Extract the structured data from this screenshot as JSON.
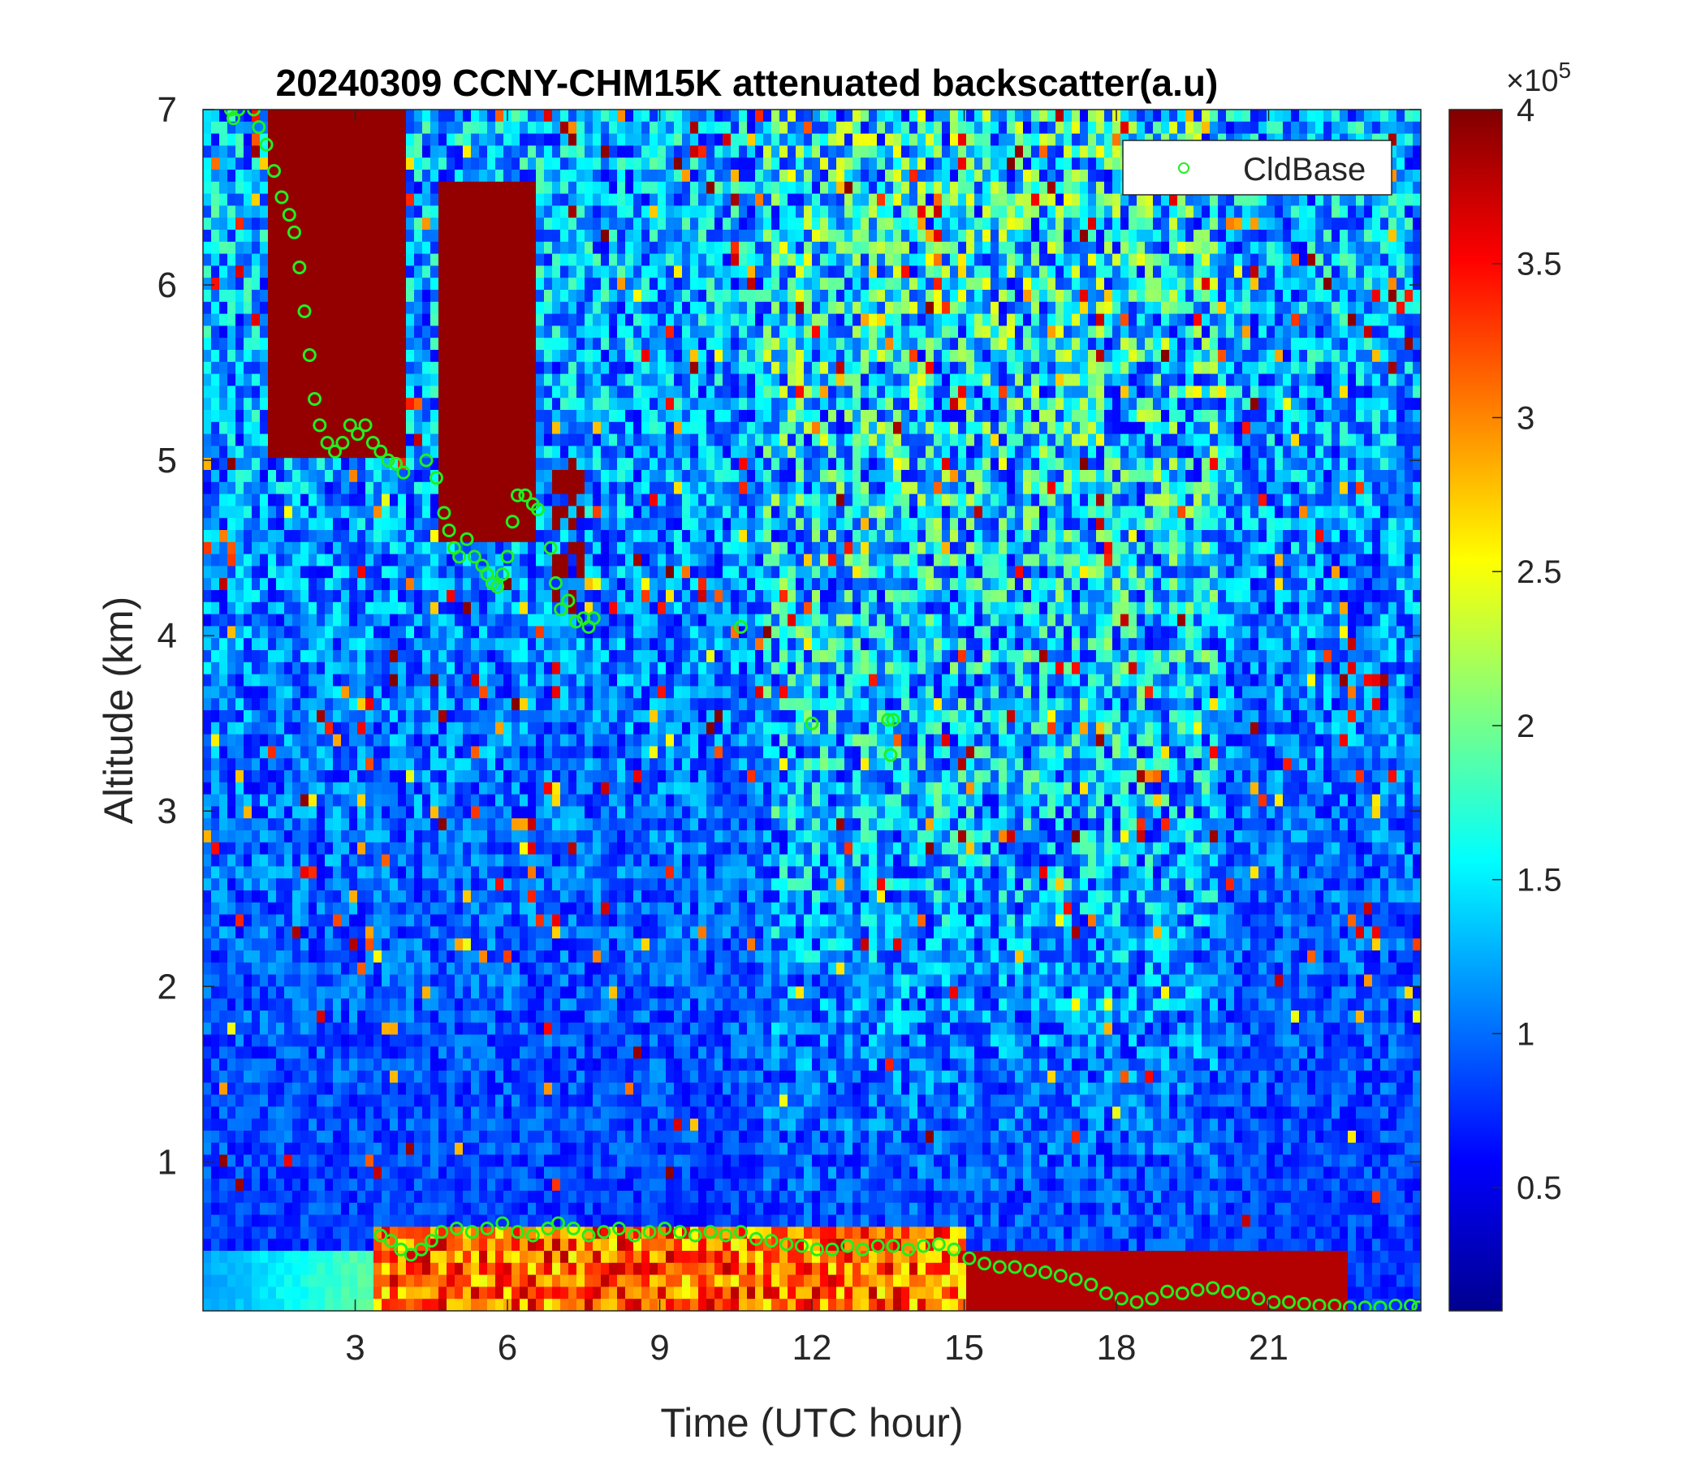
{
  "chart_data": {
    "type": "heatmap",
    "title": "20240309 CCNY-CHM15K attenuated backscatter(a.u)",
    "xlabel": "Time (UTC hour)",
    "ylabel": "Altitude (km)",
    "xlim": [
      0,
      24
    ],
    "ylim": [
      0.15,
      7
    ],
    "xticks": [
      3,
      6,
      9,
      12,
      15,
      18,
      21
    ],
    "yticks": [
      1,
      2,
      3,
      4,
      5,
      6,
      7
    ],
    "colormap": "jet",
    "colorbar": {
      "exponent_label": "×10",
      "exponent": "5",
      "range": [
        0.1,
        4
      ],
      "ticks": [
        0.5,
        1,
        1.5,
        2,
        2.5,
        3,
        3.5,
        4
      ]
    },
    "legend": {
      "position": "top-right",
      "entries": [
        "CldBase"
      ]
    },
    "series": [
      {
        "name": "CldBase",
        "marker": "circle",
        "color": "#22ee22",
        "points": [
          [
            0.55,
            7.0
          ],
          [
            0.6,
            6.95
          ],
          [
            0.7,
            7.0
          ],
          [
            1.0,
            7.0
          ],
          [
            1.1,
            6.9
          ],
          [
            1.25,
            6.8
          ],
          [
            1.4,
            6.65
          ],
          [
            1.55,
            6.5
          ],
          [
            1.7,
            6.4
          ],
          [
            1.8,
            6.3
          ],
          [
            1.9,
            6.1
          ],
          [
            2.0,
            5.85
          ],
          [
            2.1,
            5.6
          ],
          [
            2.2,
            5.35
          ],
          [
            2.3,
            5.2
          ],
          [
            2.45,
            5.1
          ],
          [
            2.6,
            5.05
          ],
          [
            2.75,
            5.1
          ],
          [
            2.9,
            5.2
          ],
          [
            3.05,
            5.15
          ],
          [
            3.2,
            5.2
          ],
          [
            3.35,
            5.1
          ],
          [
            3.5,
            5.05
          ],
          [
            3.65,
            5.0
          ],
          [
            3.8,
            4.98
          ],
          [
            3.95,
            4.93
          ],
          [
            4.4,
            5.0
          ],
          [
            4.6,
            4.9
          ],
          [
            4.75,
            4.7
          ],
          [
            4.85,
            4.6
          ],
          [
            4.95,
            4.5
          ],
          [
            5.05,
            4.45
          ],
          [
            5.2,
            4.55
          ],
          [
            5.35,
            4.45
          ],
          [
            5.5,
            4.4
          ],
          [
            5.6,
            4.35
          ],
          [
            5.7,
            4.3
          ],
          [
            5.8,
            4.28
          ],
          [
            5.9,
            4.35
          ],
          [
            6.0,
            4.45
          ],
          [
            6.1,
            4.65
          ],
          [
            6.2,
            4.8
          ],
          [
            6.35,
            4.8
          ],
          [
            6.5,
            4.75
          ],
          [
            6.6,
            4.72
          ],
          [
            6.85,
            4.5
          ],
          [
            6.95,
            4.3
          ],
          [
            7.05,
            4.15
          ],
          [
            7.2,
            4.2
          ],
          [
            7.35,
            4.08
          ],
          [
            7.5,
            4.1
          ],
          [
            7.6,
            4.05
          ],
          [
            7.7,
            4.1
          ],
          [
            10.6,
            4.05
          ],
          [
            12.0,
            3.5
          ],
          [
            13.5,
            3.52
          ],
          [
            13.6,
            3.52
          ],
          [
            13.55,
            3.32
          ],
          [
            3.5,
            0.58
          ],
          [
            3.7,
            0.55
          ],
          [
            3.9,
            0.5
          ],
          [
            4.1,
            0.47
          ],
          [
            4.3,
            0.5
          ],
          [
            4.5,
            0.55
          ],
          [
            4.7,
            0.6
          ],
          [
            5.0,
            0.62
          ],
          [
            5.3,
            0.6
          ],
          [
            5.6,
            0.62
          ],
          [
            5.9,
            0.65
          ],
          [
            6.2,
            0.6
          ],
          [
            6.5,
            0.58
          ],
          [
            6.8,
            0.62
          ],
          [
            7.0,
            0.65
          ],
          [
            7.3,
            0.62
          ],
          [
            7.6,
            0.58
          ],
          [
            7.9,
            0.6
          ],
          [
            8.2,
            0.62
          ],
          [
            8.5,
            0.58
          ],
          [
            8.8,
            0.6
          ],
          [
            9.1,
            0.62
          ],
          [
            9.4,
            0.6
          ],
          [
            9.7,
            0.58
          ],
          [
            10.0,
            0.6
          ],
          [
            10.3,
            0.58
          ],
          [
            10.6,
            0.6
          ],
          [
            10.9,
            0.56
          ],
          [
            11.2,
            0.55
          ],
          [
            11.5,
            0.53
          ],
          [
            11.8,
            0.52
          ],
          [
            12.1,
            0.5
          ],
          [
            12.4,
            0.5
          ],
          [
            12.7,
            0.52
          ],
          [
            13.0,
            0.5
          ],
          [
            13.3,
            0.52
          ],
          [
            13.6,
            0.52
          ],
          [
            13.9,
            0.5
          ],
          [
            14.2,
            0.52
          ],
          [
            14.5,
            0.53
          ],
          [
            14.8,
            0.5
          ],
          [
            15.1,
            0.45
          ],
          [
            15.4,
            0.42
          ],
          [
            15.7,
            0.4
          ],
          [
            16.0,
            0.4
          ],
          [
            16.3,
            0.38
          ],
          [
            16.6,
            0.37
          ],
          [
            16.9,
            0.35
          ],
          [
            17.2,
            0.33
          ],
          [
            17.5,
            0.3
          ],
          [
            17.8,
            0.25
          ],
          [
            18.1,
            0.22
          ],
          [
            18.4,
            0.2
          ],
          [
            18.7,
            0.22
          ],
          [
            19.0,
            0.26
          ],
          [
            19.3,
            0.25
          ],
          [
            19.6,
            0.27
          ],
          [
            19.9,
            0.28
          ],
          [
            20.2,
            0.26
          ],
          [
            20.5,
            0.25
          ],
          [
            20.8,
            0.22
          ],
          [
            21.1,
            0.2
          ],
          [
            21.4,
            0.2
          ],
          [
            21.7,
            0.19
          ],
          [
            22.0,
            0.18
          ],
          [
            22.3,
            0.18
          ],
          [
            22.6,
            0.17
          ],
          [
            22.9,
            0.17
          ],
          [
            23.2,
            0.17
          ],
          [
            23.5,
            0.18
          ],
          [
            23.8,
            0.18
          ],
          [
            23.95,
            0.17
          ]
        ]
      }
    ]
  }
}
